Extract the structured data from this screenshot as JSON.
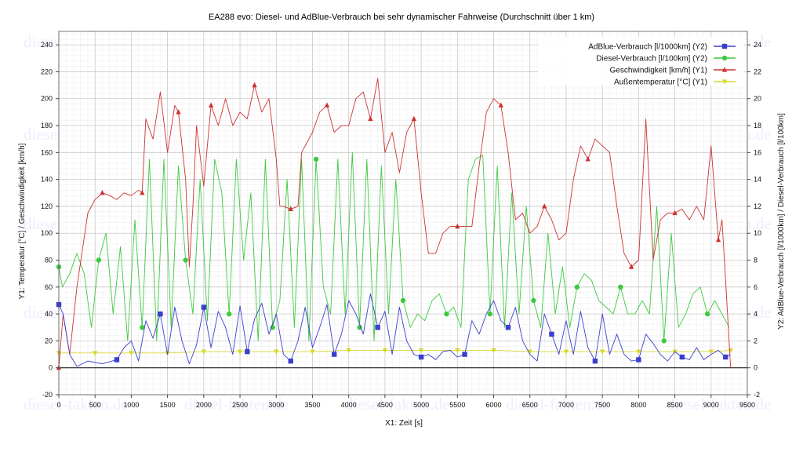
{
  "chart_data": {
    "type": "line",
    "title": "EA288 evo: Diesel- und AdBlue-Verbrauch bei sehr dynamischer Fahrweise (Durchschnitt über 1 km)",
    "xlabel": "X1: Zeit [s]",
    "ylabel_left": "Y1: Temperatur [°C] / Geschwindigkeit [km/h]",
    "ylabel_right": "Y2: AdBlue-Verbrauch [l/1000km] / Diesel-Verbrauch [l/100km]",
    "xlim": [
      0,
      9500
    ],
    "ylim_left": [
      -20,
      250
    ],
    "ylim_right": [
      -2,
      25
    ],
    "x_ticks": [
      "0",
      "500",
      "1000",
      "1500",
      "2000",
      "2500",
      "3000",
      "3500",
      "4000",
      "4500",
      "5000",
      "5500",
      "6000",
      "6500",
      "7000",
      "7500",
      "8000",
      "8500",
      "9000",
      "9500"
    ],
    "y_left_ticks": [
      "-20",
      "0",
      "20",
      "40",
      "60",
      "80",
      "100",
      "120",
      "140",
      "160",
      "180",
      "200",
      "220",
      "240"
    ],
    "y_right_ticks": [
      "-2",
      "0",
      "2",
      "4",
      "6",
      "8",
      "10",
      "12",
      "14",
      "16",
      "18",
      "20",
      "22",
      "24"
    ],
    "grid": true,
    "legend_position": "top-right",
    "watermark": "diesel-fakten.de",
    "series": [
      {
        "name": "AdBlue-Verbrauch [l/1000km] (Y2)",
        "axis": "right",
        "color": "#3a3fd0",
        "marker": "square",
        "x": [
          0,
          60,
          150,
          250,
          400,
          600,
          800,
          900,
          1000,
          1100,
          1200,
          1300,
          1400,
          1500,
          1600,
          1700,
          1800,
          1900,
          2000,
          2100,
          2200,
          2300,
          2400,
          2500,
          2600,
          2700,
          2800,
          2900,
          3000,
          3100,
          3200,
          3300,
          3400,
          3500,
          3600,
          3700,
          3800,
          3900,
          4000,
          4100,
          4200,
          4300,
          4400,
          4500,
          4600,
          4700,
          4800,
          4900,
          5000,
          5100,
          5200,
          5300,
          5400,
          5500,
          5600,
          5700,
          5800,
          5900,
          6000,
          6100,
          6200,
          6300,
          6400,
          6500,
          6600,
          6700,
          6800,
          6900,
          7000,
          7100,
          7200,
          7300,
          7400,
          7500,
          7600,
          7700,
          7800,
          7900,
          8000,
          8100,
          8200,
          8300,
          8400,
          8500,
          8600,
          8700,
          8800,
          8900,
          9000,
          9100,
          9200,
          9270
        ],
        "y": [
          4.7,
          4.0,
          1.0,
          0.1,
          0.5,
          0.3,
          0.6,
          1.5,
          2.0,
          0.5,
          3.5,
          2.2,
          4.0,
          1.0,
          4.5,
          2.0,
          0.3,
          1.7,
          4.5,
          1.5,
          4.2,
          3.0,
          1.0,
          4.6,
          1.2,
          3.6,
          4.8,
          2.5,
          4.0,
          1.0,
          0.5,
          2.0,
          4.5,
          1.5,
          3.0,
          4.7,
          1.0,
          2.5,
          5.0,
          4.0,
          2.5,
          5.5,
          3.0,
          4.2,
          1.0,
          4.5,
          2.0,
          1.0,
          0.8,
          1.0,
          0.6,
          1.2,
          1.3,
          0.8,
          1.0,
          3.5,
          2.5,
          4.0,
          5.0,
          3.5,
          3.0,
          4.5,
          2.0,
          1.0,
          0.5,
          4.0,
          2.5,
          1.0,
          3.5,
          1.0,
          4.2,
          1.5,
          0.5,
          4.0,
          1.0,
          2.5,
          1.0,
          0.5,
          0.6,
          2.5,
          1.8,
          1.0,
          0.5,
          1.2,
          0.8,
          0.6,
          1.5,
          0.6,
          1.0,
          1.3,
          0.8,
          1.0
        ]
      },
      {
        "name": "Diesel-Verbrauch [l/100km] (Y2)",
        "axis": "right",
        "color": "#3fc83f",
        "marker": "circle",
        "x": [
          0,
          50,
          150,
          250,
          350,
          450,
          550,
          650,
          750,
          850,
          950,
          1050,
          1150,
          1250,
          1350,
          1450,
          1550,
          1650,
          1750,
          1850,
          1950,
          2050,
          2150,
          2250,
          2350,
          2450,
          2550,
          2650,
          2750,
          2850,
          2950,
          3050,
          3150,
          3250,
          3350,
          3450,
          3550,
          3650,
          3750,
          3850,
          3950,
          4050,
          4150,
          4250,
          4350,
          4450,
          4550,
          4650,
          4750,
          4850,
          4950,
          5050,
          5150,
          5250,
          5350,
          5450,
          5550,
          5650,
          5750,
          5850,
          5950,
          6050,
          6150,
          6250,
          6350,
          6450,
          6550,
          6650,
          6750,
          6850,
          6950,
          7050,
          7150,
          7250,
          7350,
          7450,
          7550,
          7650,
          7750,
          7850,
          7950,
          8050,
          8150,
          8250,
          8350,
          8450,
          8550,
          8650,
          8750,
          8850,
          8950,
          9050,
          9150,
          9250
        ],
        "y": [
          7.5,
          6.0,
          7.0,
          8.5,
          7.0,
          3.0,
          8.0,
          10.0,
          4.0,
          9.0,
          2.0,
          11.0,
          3.0,
          15.5,
          2.0,
          15.5,
          3.0,
          15.0,
          8.0,
          4.0,
          14.0,
          3.5,
          15.5,
          13.0,
          4.0,
          15.5,
          8.0,
          13.0,
          2.0,
          15.5,
          3.0,
          5.0,
          14.0,
          3.0,
          15.5,
          2.0,
          15.5,
          6.0,
          4.0,
          15.5,
          4.0,
          16.0,
          3.0,
          15.5,
          2.0,
          15.0,
          4.0,
          14.0,
          5.0,
          3.0,
          4.0,
          3.5,
          5.0,
          5.5,
          4.0,
          4.5,
          3.0,
          14.0,
          15.5,
          15.8,
          4.0,
          15.0,
          3.0,
          13.0,
          4.0,
          12.0,
          5.0,
          3.0,
          10.0,
          4.0,
          7.5,
          3.0,
          6.0,
          7.0,
          6.5,
          5.0,
          4.5,
          4.0,
          6.0,
          4.0,
          4.0,
          5.0,
          4.0,
          12.0,
          2.0,
          10.0,
          3.0,
          4.0,
          5.5,
          6.0,
          4.0,
          5.0,
          4.0,
          3.0
        ]
      },
      {
        "name": "Geschwindigkeit [km/h] (Y1)",
        "axis": "left",
        "color": "#cc3333",
        "marker": "triangle",
        "x": [
          0,
          60,
          150,
          250,
          400,
          500,
          600,
          700,
          800,
          900,
          1000,
          1100,
          1150,
          1200,
          1300,
          1400,
          1500,
          1600,
          1650,
          1750,
          1800,
          1850,
          1900,
          2000,
          2100,
          2200,
          2300,
          2400,
          2500,
          2600,
          2700,
          2800,
          2900,
          3000,
          3050,
          3100,
          3200,
          3300,
          3350,
          3400,
          3500,
          3600,
          3700,
          3800,
          3900,
          4000,
          4100,
          4200,
          4300,
          4400,
          4500,
          4600,
          4700,
          4800,
          4900,
          5000,
          5100,
          5200,
          5300,
          5400,
          5500,
          5600,
          5700,
          5800,
          5900,
          6000,
          6100,
          6200,
          6300,
          6400,
          6500,
          6600,
          6700,
          6800,
          6900,
          7000,
          7100,
          7200,
          7300,
          7400,
          7500,
          7600,
          7700,
          7800,
          7900,
          8000,
          8100,
          8200,
          8300,
          8400,
          8500,
          8600,
          8700,
          8800,
          8900,
          9000,
          9100,
          9150,
          9200,
          9270
        ],
        "y": [
          0,
          40,
          10,
          60,
          115,
          125,
          130,
          128,
          125,
          130,
          128,
          132,
          130,
          185,
          170,
          205,
          160,
          195,
          190,
          140,
          75,
          120,
          180,
          135,
          195,
          180,
          200,
          180,
          190,
          185,
          210,
          190,
          200,
          155,
          120,
          120,
          118,
          120,
          160,
          165,
          175,
          190,
          195,
          175,
          180,
          180,
          200,
          205,
          185,
          215,
          160,
          175,
          145,
          175,
          185,
          130,
          85,
          85,
          100,
          105,
          105,
          105,
          105,
          150,
          190,
          200,
          195,
          160,
          110,
          115,
          100,
          105,
          120,
          110,
          95,
          100,
          140,
          165,
          155,
          170,
          165,
          160,
          120,
          85,
          75,
          80,
          185,
          80,
          110,
          115,
          115,
          118,
          110,
          120,
          110,
          165,
          95,
          110,
          65,
          0
        ]
      },
      {
        "name": "Außentemperatur [°C] (Y1)",
        "axis": "left",
        "color": "#d8d830",
        "marker": "triangle-down",
        "x": [
          0,
          500,
          1000,
          1500,
          2000,
          2500,
          3000,
          3500,
          4000,
          4500,
          5000,
          5500,
          6000,
          6500,
          7000,
          7500,
          8000,
          8500,
          9000,
          9270
        ],
        "y": [
          11,
          11,
          11,
          11,
          12,
          12,
          12,
          12,
          13,
          13,
          13,
          13,
          13,
          12,
          12,
          12,
          12,
          12,
          12,
          13
        ]
      }
    ]
  }
}
